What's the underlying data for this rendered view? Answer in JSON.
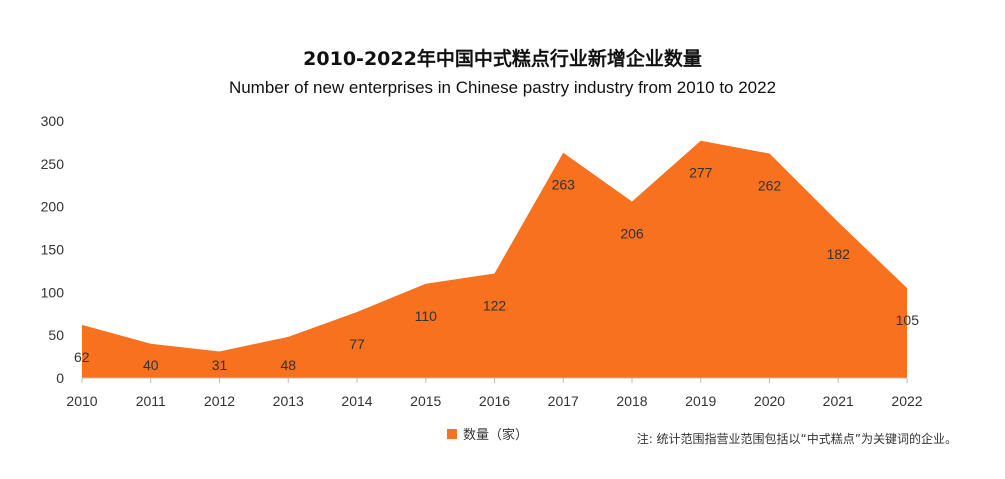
{
  "chart_data": {
    "type": "area",
    "title": "2010-2022年中国中式糕点行业新增企业数量",
    "subtitle": "Number of new enterprises in Chinese pastry industry from 2010 to 2022",
    "categories": [
      "2010",
      "2011",
      "2012",
      "2013",
      "2014",
      "2015",
      "2016",
      "2017",
      "2018",
      "2019",
      "2020",
      "2021",
      "2022"
    ],
    "series": [
      {
        "name": "数量（家）",
        "values": [
          62,
          40,
          31,
          48,
          77,
          110,
          122,
          263,
          206,
          277,
          262,
          182,
          105
        ]
      }
    ],
    "y_ticks": [
      0,
      50,
      100,
      150,
      200,
      250,
      300
    ],
    "ylim": [
      0,
      300
    ],
    "xlabel": "",
    "ylabel": "",
    "grid": false,
    "legend_position": "bottom",
    "color": "#F7711E"
  },
  "note": "注: 统计范围指营业范围包括以“中式糕点”为关键词的企业。"
}
